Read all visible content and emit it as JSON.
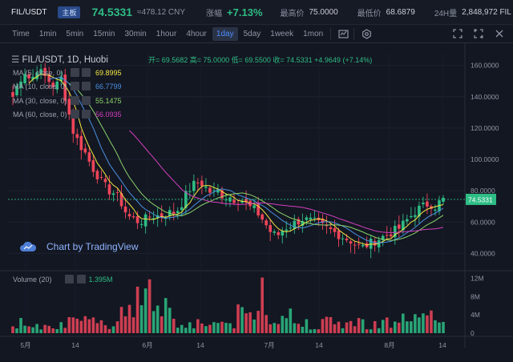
{
  "ticker": {
    "pair": "FIL/USDT",
    "board": "主板",
    "price": "74.5331",
    "cny": "≈478.12 CNY",
    "change_label": "涨幅",
    "change": "+7.13%",
    "high_label": "最高价",
    "high": "75.0000",
    "low_label": "最低价",
    "low": "68.6879",
    "vol_label": "24H量",
    "vol": "2,848,972 FIL"
  },
  "toolbar": {
    "timeframes": [
      "Time",
      "1min",
      "5min",
      "15min",
      "30min",
      "1hour",
      "4hour",
      "1day",
      "5day",
      "1week",
      "1mon"
    ],
    "active": "1day"
  },
  "chart": {
    "title": "FIL/USDT, 1D, Huobi",
    "ohlc": "开= 69.5682  高= 75.0000  低= 69.5500  收= 74.5331  +4.9649 (+7.14%)",
    "ma": [
      {
        "name": "MA (5, close, 0)",
        "value": "69.8995",
        "color": "#f5e642"
      },
      {
        "name": "MA (10, close, 0)",
        "value": "66.7799",
        "color": "#4a90e2"
      },
      {
        "name": "MA (30, close, 0)",
        "value": "55.1475",
        "color": "#8bd36a"
      },
      {
        "name": "MA (60, close, 0)",
        "value": "56.0935",
        "color": "#d43fbf"
      }
    ],
    "watermark": "Chart by TradingView",
    "volume_label": "Volume (20)",
    "volume_value": "1.395M",
    "current_price_label": "74.5331",
    "price_ticks": [
      "160.0000",
      "140.0000",
      "120.0000",
      "100.0000",
      "80.0000",
      "60.0000",
      "40.0000"
    ],
    "volume_ticks": [
      "12M",
      "8M",
      "4M",
      "0"
    ],
    "date_ticks": [
      "5月",
      "14",
      "6月",
      "14",
      "7月",
      "14",
      "8月",
      "14"
    ],
    "colors": {
      "up": "#2ebd85",
      "down": "#f0455a",
      "bg": "#131722"
    }
  }
}
